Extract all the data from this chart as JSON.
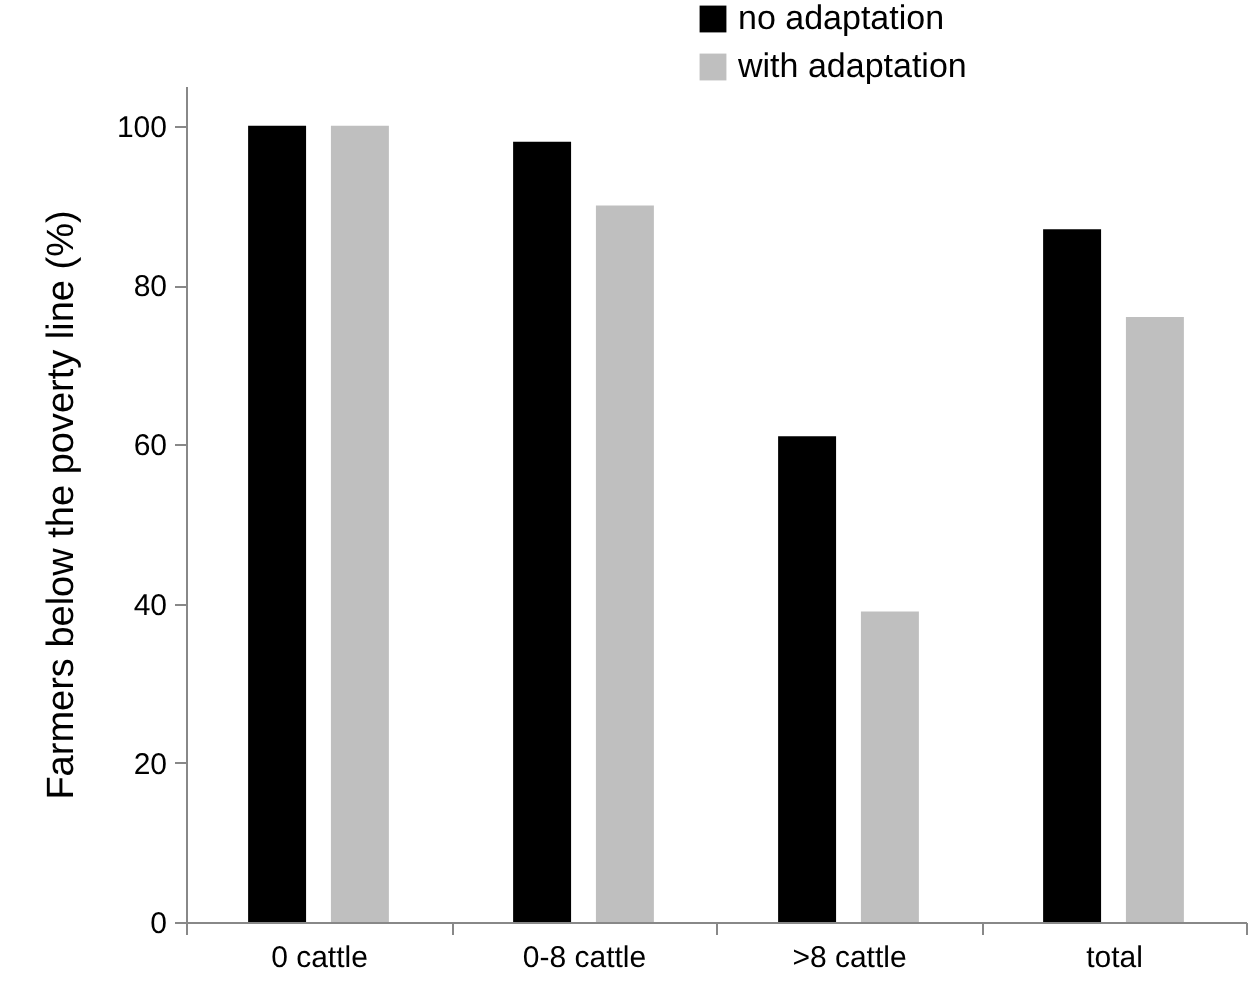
{
  "chart_data": {
    "type": "bar",
    "ylabel": "Farmers below the poverty line (%)",
    "categories": [
      "0 cattle",
      "0-8 cattle",
      ">8 cattle",
      "total"
    ],
    "series": [
      {
        "name": "no adaptation",
        "color": "#000000",
        "values": [
          100,
          98,
          61,
          87
        ]
      },
      {
        "name": "with adaptation",
        "color": "#bfbfbf",
        "values": [
          100,
          90,
          39,
          76
        ]
      }
    ],
    "ylim": [
      0,
      105
    ],
    "yticks": [
      0,
      20,
      40,
      60,
      80,
      100
    ],
    "grid": false,
    "legend": "top right"
  }
}
